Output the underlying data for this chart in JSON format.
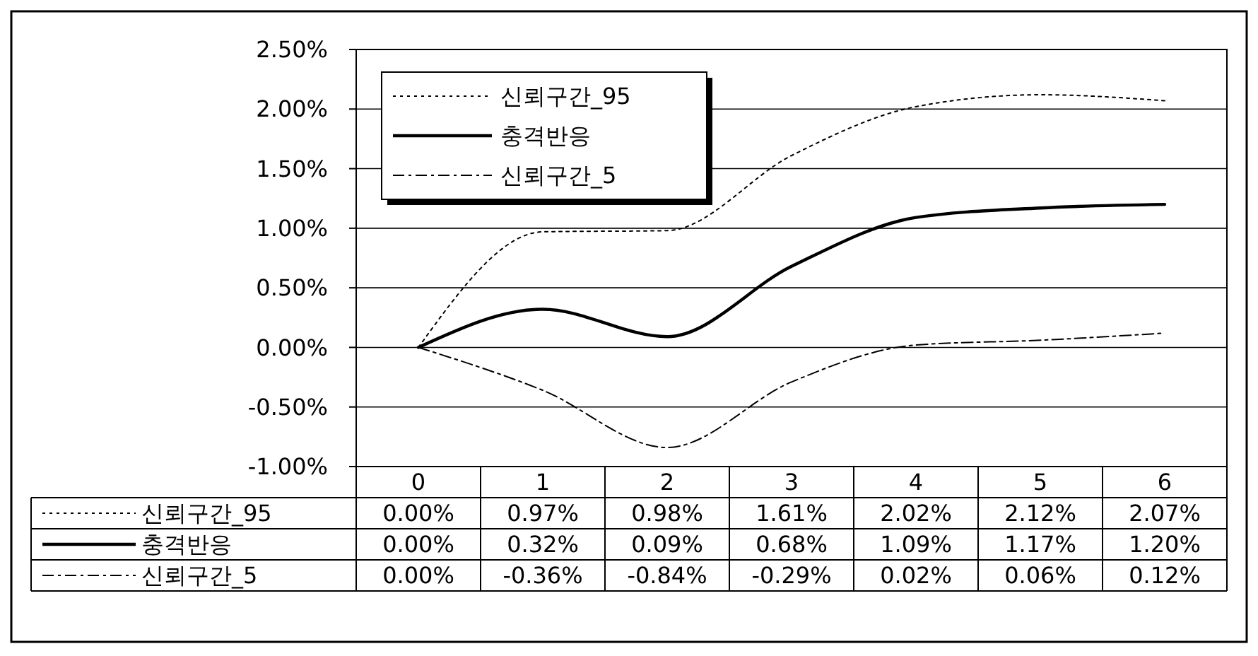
{
  "chart_data": {
    "type": "line",
    "categories": [
      "0",
      "1",
      "2",
      "3",
      "4",
      "5",
      "6"
    ],
    "series": [
      {
        "name": "신뢰구간_95",
        "color": "#000000",
        "line_style": "dotted",
        "values": [
          0.0,
          0.97,
          0.98,
          1.61,
          2.02,
          2.12,
          2.07
        ],
        "value_labels": [
          "0.00%",
          "0.97%",
          "0.98%",
          "1.61%",
          "2.02%",
          "2.12%",
          "2.07%"
        ]
      },
      {
        "name": "충격반응",
        "color": "#000000",
        "line_style": "solid",
        "values": [
          0.0,
          0.32,
          0.09,
          0.68,
          1.09,
          1.17,
          1.2
        ],
        "value_labels": [
          "0.00%",
          "0.32%",
          "0.09%",
          "0.68%",
          "1.09%",
          "1.17%",
          "1.20%"
        ]
      },
      {
        "name": "신뢰구간_5",
        "color": "#000000",
        "line_style": "dashdot",
        "values": [
          0.0,
          -0.36,
          -0.84,
          -0.29,
          0.02,
          0.06,
          0.12
        ],
        "value_labels": [
          "0.00%",
          "-0.36%",
          "-0.84%",
          "-0.29%",
          "0.02%",
          "0.06%",
          "0.12%"
        ]
      }
    ],
    "ylim": [
      -1.0,
      2.5
    ],
    "yticks": [
      {
        "value": -1.0,
        "label": "-1.00%"
      },
      {
        "value": -0.5,
        "label": "-0.50%"
      },
      {
        "value": 0,
        "label": "0.00%"
      },
      {
        "value": 0.5,
        "label": "0.50%"
      },
      {
        "value": 1.0,
        "label": "1.00%"
      },
      {
        "value": 1.5,
        "label": "1.50%"
      },
      {
        "value": 2.0,
        "label": "2.00%"
      },
      {
        "value": 2.5,
        "label": "2.50%"
      }
    ],
    "grid": "y",
    "legend": "top left"
  }
}
